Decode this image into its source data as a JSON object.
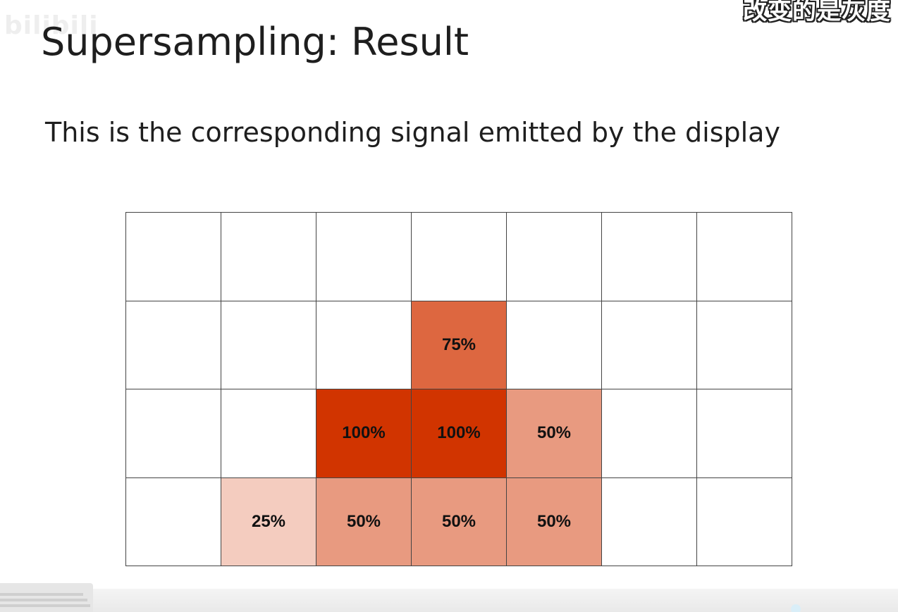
{
  "title": "Supersampling: Result",
  "subtitle": "This is the corresponding signal emitted by the display",
  "colors": {
    "accent": "#d13400",
    "grid_line": "#444444",
    "background": "#ffffff"
  },
  "grid": {
    "columns": 7,
    "rows": [
      [
        null,
        null,
        null,
        null,
        null,
        null,
        null
      ],
      [
        null,
        null,
        null,
        {
          "label": "75%",
          "coverage": 0.75
        },
        null,
        null,
        null
      ],
      [
        null,
        null,
        {
          "label": "100%",
          "coverage": 1.0
        },
        {
          "label": "100%",
          "coverage": 1.0
        },
        {
          "label": "50%",
          "coverage": 0.5
        },
        null,
        null
      ],
      [
        null,
        {
          "label": "25%",
          "coverage": 0.25
        },
        {
          "label": "50%",
          "coverage": 0.5
        },
        {
          "label": "50%",
          "coverage": 0.5
        },
        {
          "label": "50%",
          "coverage": 0.5
        },
        null,
        null
      ]
    ]
  }
}
